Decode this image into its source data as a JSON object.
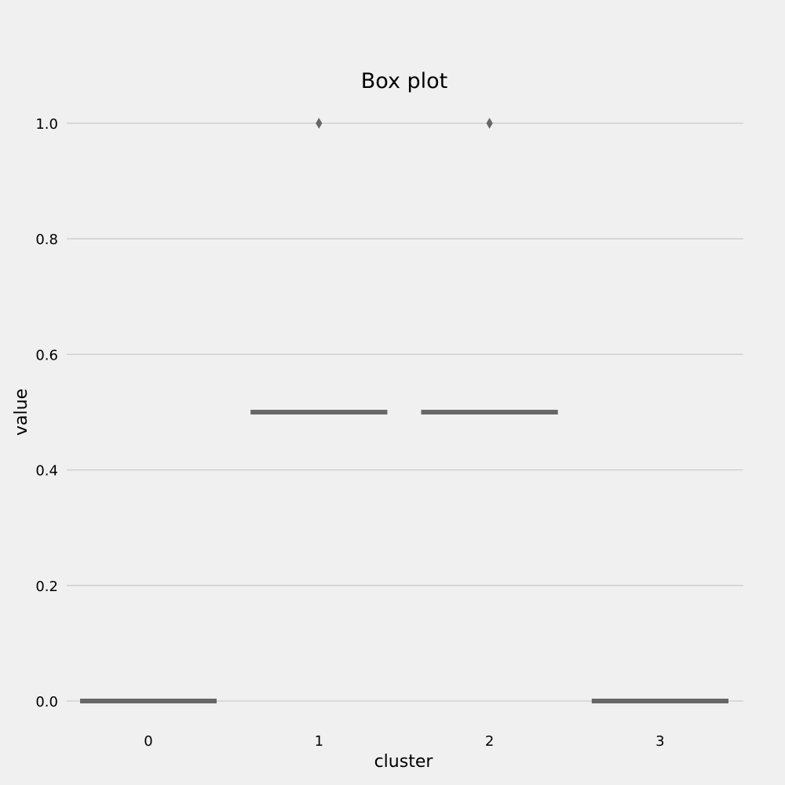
{
  "chart_data": {
    "type": "box",
    "title": "Box plot",
    "xlabel": "cluster",
    "ylabel": "value",
    "categories": [
      "0",
      "1",
      "2",
      "3"
    ],
    "yticks": [
      "0.0",
      "0.2",
      "0.4",
      "0.6",
      "0.8",
      "1.0"
    ],
    "ylim": [
      -0.05,
      1.07
    ],
    "grid": "horizontal",
    "boxes": [
      {
        "category": "0",
        "min": 0.0,
        "q1": 0.0,
        "median": 0.0,
        "q3": 0.0,
        "max": 0.0,
        "outliers": []
      },
      {
        "category": "1",
        "min": 0.5,
        "q1": 0.5,
        "median": 0.5,
        "q3": 0.5,
        "max": 0.5,
        "outliers": [
          1.0
        ]
      },
      {
        "category": "2",
        "min": 0.5,
        "q1": 0.5,
        "median": 0.5,
        "q3": 0.5,
        "max": 0.5,
        "outliers": [
          1.0
        ]
      },
      {
        "category": "3",
        "min": 0.0,
        "q1": 0.0,
        "median": 0.0,
        "q3": 0.0,
        "max": 0.0,
        "outliers": []
      }
    ],
    "colors": {
      "background": "#f0f0f0",
      "grid": "#cbcbcb",
      "box_line": "#676767",
      "text": "#000000"
    }
  }
}
